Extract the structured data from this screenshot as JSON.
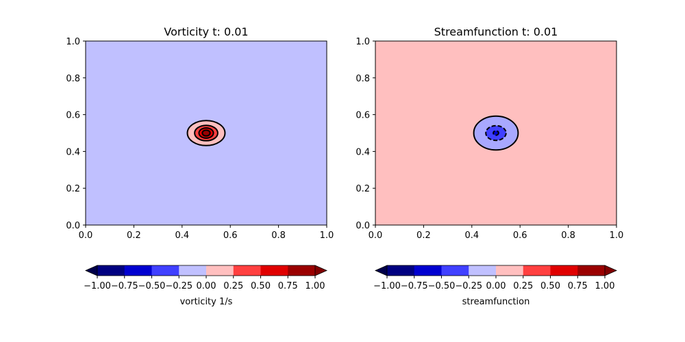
{
  "chart_data": [
    {
      "type": "contour",
      "title": "Vorticity t:  0.01",
      "xlim": [
        0.0,
        1.0
      ],
      "ylim": [
        0.0,
        1.0
      ],
      "xticks": [
        "0.0",
        "0.2",
        "0.4",
        "0.6",
        "0.8",
        "1.0"
      ],
      "yticks": [
        "0.0",
        "0.2",
        "0.4",
        "0.6",
        "0.8",
        "1.0"
      ],
      "background_level_color": "#c0c0ff",
      "center": [
        0.5,
        0.5
      ],
      "contours": [
        {
          "level": 0.0,
          "rx": 0.078,
          "ry": 0.068,
          "fill": "#ffbfbf",
          "dashed": false
        },
        {
          "level": 0.25,
          "rx": 0.048,
          "ry": 0.042,
          "fill": "#ff4040",
          "dashed": false
        },
        {
          "level": 0.5,
          "rx": 0.03,
          "ry": 0.028,
          "fill": "#e00000",
          "dashed": false
        },
        {
          "level": 0.75,
          "rx": 0.016,
          "ry": 0.016,
          "fill": "#9a0000",
          "dashed": false
        }
      ],
      "colorbar": {
        "label": "vorticity 1/s",
        "ticks": [
          "−1.00",
          "−0.75",
          "−0.50",
          "−0.25",
          "0.00",
          "0.25",
          "0.50",
          "0.75",
          "1.00"
        ],
        "colors": [
          "#000080",
          "#0000d0",
          "#4040ff",
          "#c0c0ff",
          "#ffbfbf",
          "#ff4040",
          "#e00000",
          "#9a0000"
        ],
        "under_color": "#00004a",
        "over_color": "#800000"
      }
    },
    {
      "type": "contour",
      "title": "Streamfunction t:  0.01",
      "xlim": [
        0.0,
        1.0
      ],
      "ylim": [
        0.0,
        1.0
      ],
      "xticks": [
        "0.0",
        "0.2",
        "0.4",
        "0.6",
        "0.8",
        "1.0"
      ],
      "yticks": [
        "0.0",
        "0.2",
        "0.4",
        "0.6",
        "0.8",
        "1.0"
      ],
      "background_level_color": "#ffbfbf",
      "center": [
        0.5,
        0.5
      ],
      "contours": [
        {
          "level": 0.0,
          "rx": 0.092,
          "ry": 0.092,
          "fill": "#a8a8ff",
          "dashed": false
        },
        {
          "level": -0.25,
          "rx": 0.042,
          "ry": 0.04,
          "fill": "#4040ff",
          "dashed": true
        },
        {
          "level": -0.5,
          "rx": 0.011,
          "ry": 0.012,
          "fill": "#0000d0",
          "dashed": true
        }
      ],
      "colorbar": {
        "label": "streamfunction",
        "ticks": [
          "−1.00",
          "−0.75",
          "−0.50",
          "−0.25",
          "0.00",
          "0.25",
          "0.50",
          "0.75",
          "1.00"
        ],
        "colors": [
          "#000080",
          "#0000d0",
          "#4040ff",
          "#c0c0ff",
          "#ffbfbf",
          "#ff4040",
          "#e00000",
          "#9a0000"
        ],
        "under_color": "#00004a",
        "over_color": "#800000"
      }
    }
  ]
}
